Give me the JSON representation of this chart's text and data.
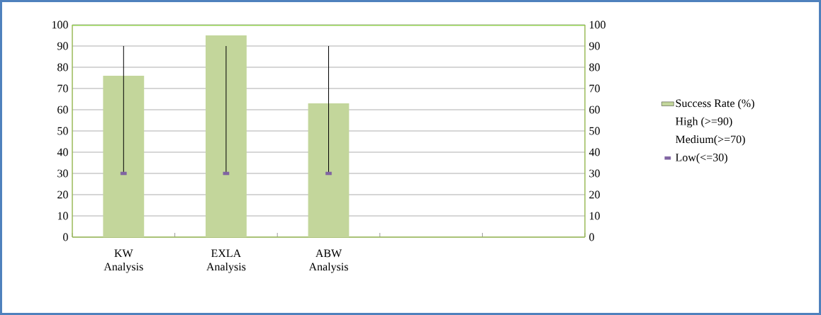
{
  "chart_data": {
    "type": "bar",
    "categories": [
      "KW Analysis",
      "EXLA Analysis",
      "ABW Analysis",
      null,
      null
    ],
    "series": [
      {
        "name": "Success Rate (%)",
        "color": "#c3d69b",
        "values": [
          76,
          95,
          63,
          null,
          null
        ]
      },
      {
        "name": "High (>=90)",
        "type": "scatter",
        "marker": "none",
        "values": [
          null,
          null,
          null,
          null,
          null
        ]
      },
      {
        "name": "Medium(>=70)",
        "type": "scatter",
        "marker": "none",
        "values": [
          null,
          null,
          null,
          null,
          null
        ]
      },
      {
        "name": "Low(<=30)",
        "type": "scatter",
        "marker": "square",
        "color": "#8064a2",
        "values": [
          30,
          30,
          30,
          null,
          null
        ],
        "errors": [
          [
            30,
            90
          ],
          [
            30,
            90
          ],
          [
            30,
            90
          ],
          null,
          null
        ]
      }
    ],
    "ylim": [
      0,
      100
    ],
    "yticks": [
      0,
      10,
      20,
      30,
      40,
      50,
      60,
      70,
      80,
      90,
      100
    ],
    "y2lim": [
      0,
      100
    ],
    "y2ticks": [
      0,
      10,
      20,
      30,
      40,
      50,
      60,
      70,
      80,
      90,
      100
    ],
    "grid": "y",
    "legend": "right"
  }
}
